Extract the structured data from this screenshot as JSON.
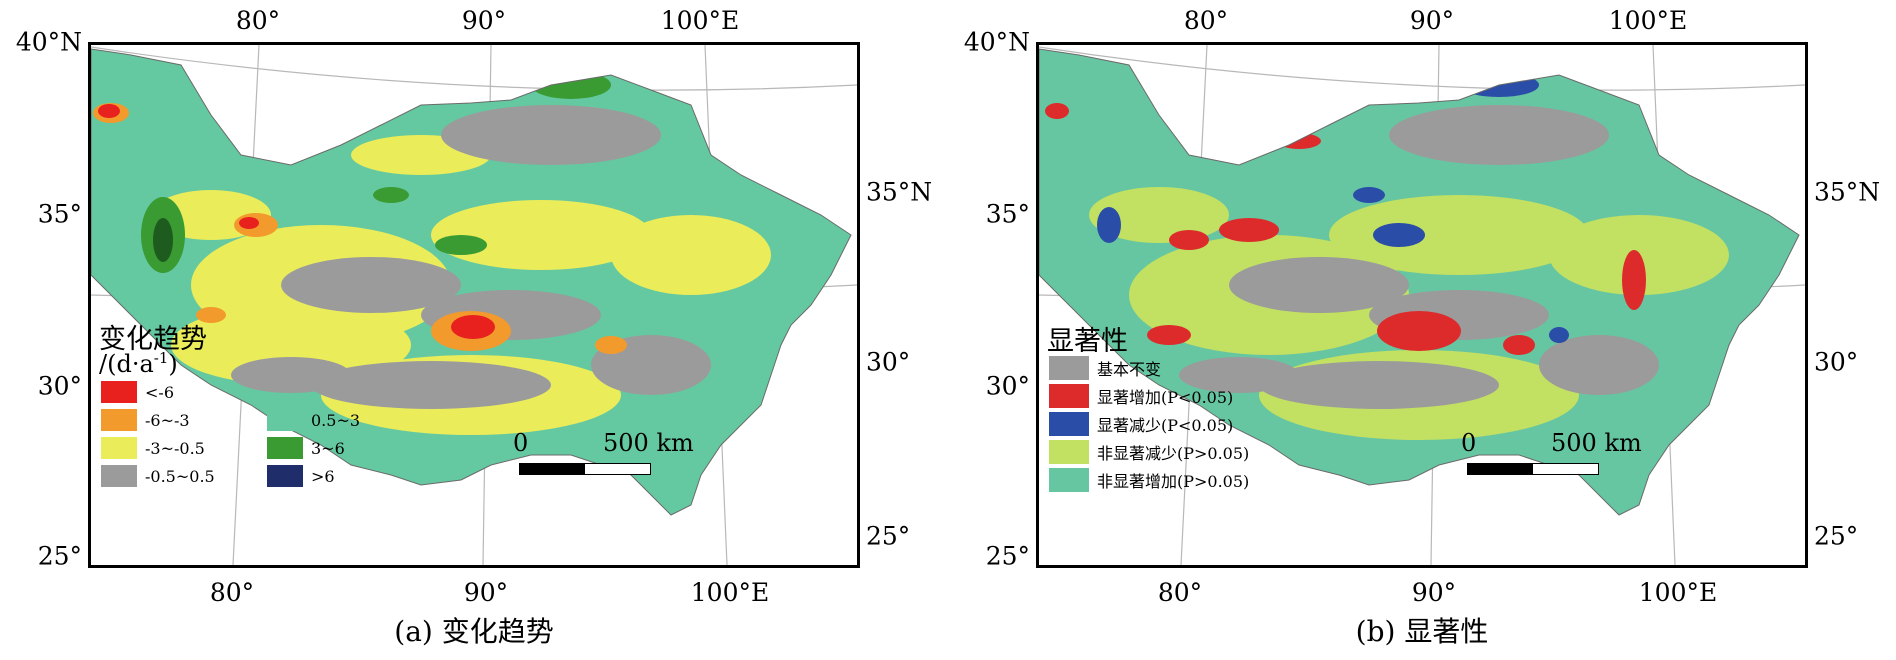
{
  "panel_a": {
    "caption": "(a) 变化趋势",
    "lon_top": [
      "80°",
      "90°",
      "100°E"
    ],
    "lon_bottom": [
      "80°",
      "90°",
      "100°E"
    ],
    "lat_left": [
      "40°N",
      "35°",
      "30°",
      "25°"
    ],
    "lat_right": [
      "35°N",
      "30°",
      "25°"
    ],
    "legend_title": "变化趋势",
    "legend_unit": "/(d·a",
    "legend_unit_exp": "-1",
    "legend_unit_close": ")",
    "legend_items": [
      {
        "label": "<-6",
        "color": "#e8211f"
      },
      {
        "label": "-6~-3",
        "color": "#f39a2c"
      },
      {
        "label": "-3~-0.5",
        "color": "#eaec5a"
      },
      {
        "label": "-0.5~0.5",
        "color": "#9b9b9b"
      },
      {
        "label": "0.5~3",
        "color": "#64c9a0"
      },
      {
        "label": "3~6",
        "color": "#3a9b33"
      },
      {
        "label": ">6",
        "color": "#1f2d6b"
      }
    ],
    "scale_zero": "0",
    "scale_max": "500 km"
  },
  "panel_b": {
    "caption": "(b) 显著性",
    "lon_top": [
      "80°",
      "90°",
      "100°E"
    ],
    "lon_bottom": [
      "80°",
      "90°",
      "100°E"
    ],
    "lat_left": [
      "40°N",
      "35°",
      "30°",
      "25°"
    ],
    "lat_right": [
      "35°N",
      "30°",
      "25°"
    ],
    "legend_title": "显著性",
    "legend_items": [
      {
        "label": "基本不变",
        "color": "#9b9b9b"
      },
      {
        "label": "显著增加(P<0.05)",
        "color": "#dd2b2b"
      },
      {
        "label": "显著减少(P<0.05)",
        "color": "#2a4da8"
      },
      {
        "label": "非显著减少(P>0.05)",
        "color": "#c2e062"
      },
      {
        "label": "非显著增加(P>0.05)",
        "color": "#66c6a2"
      }
    ],
    "scale_zero": "0",
    "scale_max": "500 km"
  }
}
